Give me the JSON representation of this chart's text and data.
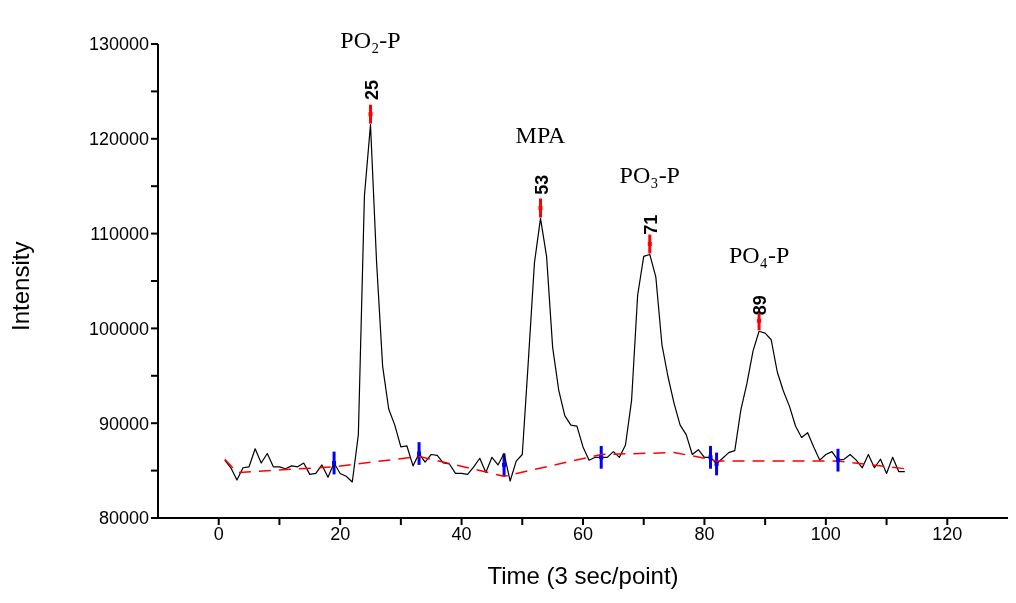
{
  "chart_data": {
    "type": "line",
    "xlabel": "Time (3 sec/point)",
    "ylabel": "Intensity",
    "xlim": [
      -10,
      130
    ],
    "xticks": [
      0,
      {
        "value": 10,
        "label": null
      },
      20,
      {
        "value": 30,
        "label": null
      },
      40,
      {
        "value": 50,
        "label": null
      },
      60,
      {
        "value": 70,
        "label": null
      },
      80,
      {
        "value": 90,
        "label": null
      },
      100,
      {
        "value": 110,
        "label": null
      },
      120
    ],
    "ylim": [
      80000,
      130000
    ],
    "yticks": [
      80000,
      {
        "value": 85000,
        "label": null
      },
      90000,
      {
        "value": 95000,
        "label": null
      },
      100000,
      {
        "value": 105000,
        "label": null
      },
      110000,
      {
        "value": 115000,
        "label": null
      },
      120000,
      {
        "value": 125000,
        "label": null
      },
      130000
    ],
    "grid": false,
    "marker": "none",
    "series": [
      {
        "color": "#000000",
        "x": [
          1,
          2,
          3,
          4,
          5,
          6,
          7,
          8,
          9,
          10,
          11,
          12,
          13,
          14,
          15,
          16,
          17,
          18,
          19,
          20,
          21,
          22,
          23,
          24,
          25,
          26,
          27,
          28,
          29,
          30,
          31,
          32,
          33,
          34,
          35,
          36,
          37,
          38,
          39,
          40,
          41,
          42,
          43,
          44,
          45,
          46,
          47,
          48,
          49,
          50,
          51,
          52,
          53,
          54,
          55,
          56,
          57,
          58,
          59,
          60,
          61,
          62,
          63,
          64,
          65,
          66,
          67,
          68,
          69,
          70,
          71,
          72,
          73,
          74,
          75,
          76,
          77,
          78,
          79,
          80,
          81,
          82,
          83,
          84,
          85,
          86,
          87,
          88,
          89,
          90,
          91,
          92,
          93,
          94,
          95,
          96,
          97,
          98,
          99,
          100,
          101,
          102,
          103,
          104,
          105,
          106,
          107,
          108,
          109,
          110,
          111,
          112,
          113
        ],
        "values": [
          86100,
          85300,
          84000,
          85300,
          85400,
          87300,
          85800,
          86800,
          85400,
          85400,
          85200,
          85500,
          85400,
          85800,
          84600,
          84700,
          85600,
          84300,
          85800,
          84700,
          84400,
          83800,
          88800,
          114000,
          121500,
          107000,
          96000,
          91500,
          89800,
          87500,
          87600,
          85500,
          86800,
          85900,
          86700,
          86600,
          85800,
          85700,
          84700,
          84700,
          84600,
          85400,
          86300,
          84800,
          86400,
          85600,
          86800,
          83900,
          86000,
          86700,
          96600,
          106900,
          111600,
          107600,
          98000,
          93500,
          90800,
          89800,
          89700,
          87500,
          86100,
          86400,
          86400,
          86400,
          87000,
          86400,
          87700,
          92400,
          103500,
          107600,
          107800,
          105400,
          98300,
          94900,
          92100,
          89800,
          88800,
          86700,
          87200,
          86400,
          86400,
          85700,
          86300,
          86900,
          87100,
          91400,
          94200,
          97600,
          99700,
          99500,
          98800,
          95400,
          93400,
          91800,
          89700,
          88500,
          89000,
          87500,
          86100,
          86700,
          87000,
          86100,
          86200,
          86700,
          86100,
          85300,
          86700,
          85300,
          86200,
          84700,
          86400,
          84900,
          84900
        ]
      },
      {
        "color": "#ff0000",
        "line_style": "dashed",
        "x": [
          1,
          3,
          19,
          33,
          47,
          63,
          75,
          81,
          82,
          102,
          113
        ],
        "values": [
          86200,
          84800,
          85400,
          86500,
          84400,
          86700,
          86900,
          86200,
          86000,
          86000,
          85200
        ]
      },
      {
        "type": "scatter",
        "color": "#0000ff",
        "marker": "square",
        "x": [
          19,
          33,
          47,
          63,
          81,
          82,
          102
        ],
        "values": [
          85800,
          86800,
          85600,
          86400,
          86400,
          85700,
          86100
        ],
        "errors": [
          1200,
          1200,
          1200,
          1200,
          1200,
          1200,
          1200
        ]
      },
      {
        "type": "scatter",
        "color": "#ff0000",
        "marker": "square",
        "x": [
          25,
          53,
          71,
          89
        ],
        "values": [
          122600,
          112700,
          108900,
          100800
        ],
        "errors": [
          1000,
          1000,
          1000,
          1000
        ]
      }
    ],
    "annotations": [
      "PO₂-P",
      "MPA",
      "PO₃-P",
      "PO₄-P",
      {
        "text": "25",
        "x": 25,
        "y": 122400
      },
      {
        "text": "53",
        "x": 53,
        "y": 112400
      },
      {
        "text": "71",
        "x": 71,
        "y": 108200
      },
      {
        "text": "89",
        "x": 89,
        "y": 99700
      }
    ]
  }
}
